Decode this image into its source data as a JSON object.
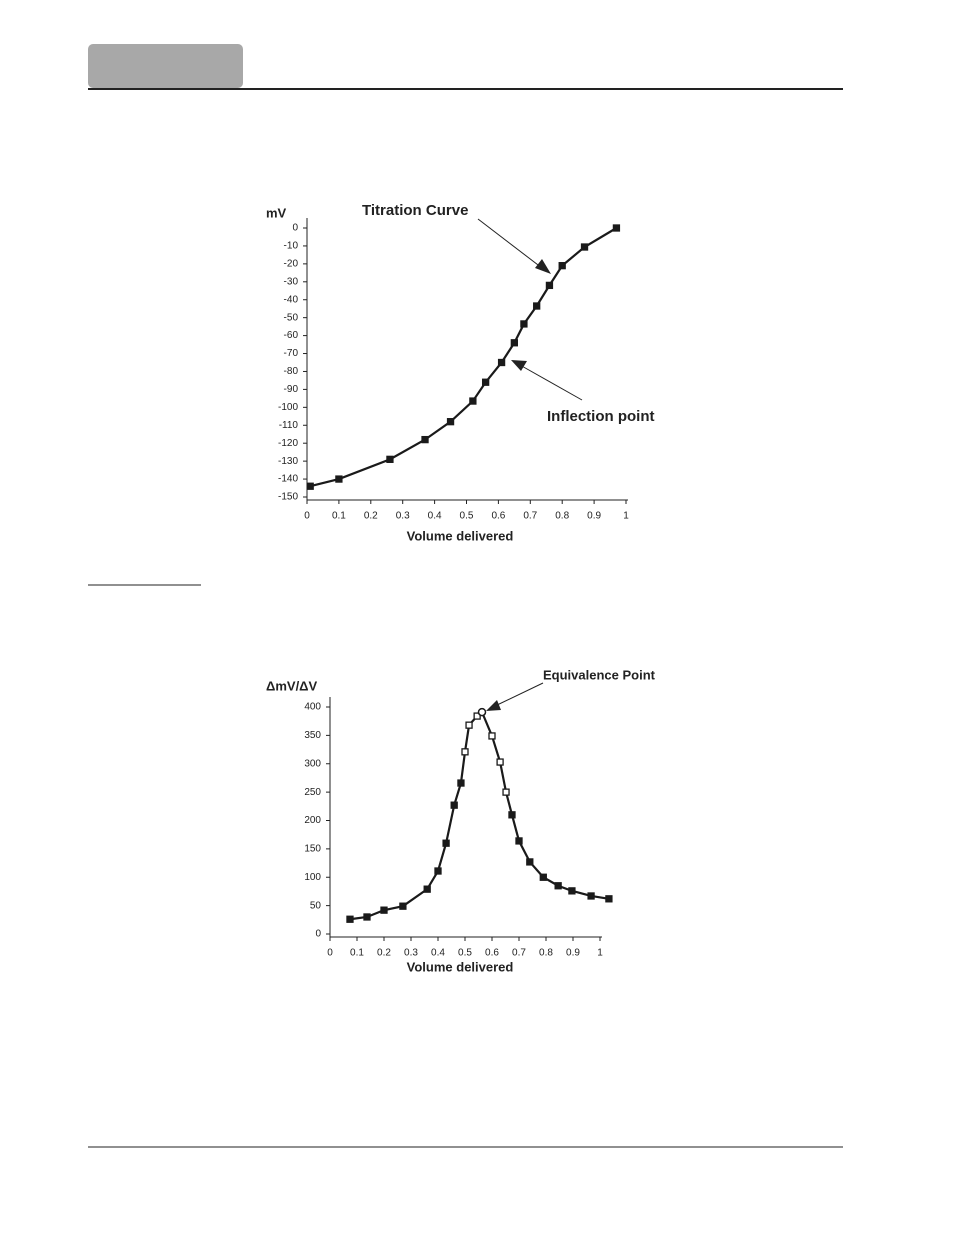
{
  "chart_data": [
    {
      "type": "line",
      "y_label": "mV",
      "x_label": "Volume delivered",
      "annotations": [
        "Titration Curve",
        "Inflection point"
      ],
      "x": [
        0.01,
        0.1,
        0.26,
        0.37,
        0.45,
        0.52,
        0.56,
        0.61,
        0.65,
        0.68,
        0.72,
        0.76,
        0.8,
        0.87,
        0.97
      ],
      "series": [
        {
          "color": "#1a1a1a",
          "values": [
            -144,
            -140,
            -129,
            -118,
            -108,
            -96.5,
            -86,
            -75,
            -64,
            -53.5,
            -43.5,
            -32,
            -21,
            -10.6,
            0
          ]
        }
      ],
      "xlim": [
        0,
        1
      ],
      "xticks": [
        0,
        0.1,
        0.2,
        0.3,
        0.4,
        0.5,
        0.6,
        0.7,
        0.8,
        0.9,
        1
      ],
      "ylim": [
        -150,
        0
      ],
      "yticks": [
        0,
        -10,
        -20,
        -30,
        -40,
        -50,
        -60,
        -70,
        -80,
        -90,
        -100,
        -110,
        -120,
        -130,
        -140,
        -150
      ],
      "grid": false
    },
    {
      "type": "line",
      "y_label": "ΔmV/ΔV",
      "x_label": "Volume delivered",
      "annotations": [
        "Equivalence Point"
      ],
      "x": [
        0.074,
        0.137,
        0.2,
        0.27,
        0.36,
        0.4,
        0.43,
        0.46,
        0.485,
        0.5,
        0.515,
        0.545,
        0.563,
        0.6,
        0.63,
        0.652,
        0.674,
        0.7,
        0.74,
        0.79,
        0.845,
        0.896,
        0.967,
        1.033
      ],
      "series": [
        {
          "color": "#1a1a1a",
          "values": [
            26,
            30,
            42,
            49,
            79,
            111,
            160,
            227,
            266,
            321,
            368,
            384,
            391,
            349,
            303,
            250,
            210,
            164,
            127,
            100,
            85,
            76,
            67,
            62
          ],
          "markers": [
            "square",
            "square",
            "square",
            "square",
            "square",
            "square",
            "square",
            "square",
            "square",
            "open-square",
            "open-square",
            "open-square",
            "open-circle",
            "open-square",
            "open-square",
            "open-square",
            "square",
            "square",
            "square",
            "square",
            "square",
            "square",
            "square",
            "square"
          ]
        }
      ],
      "xlim": [
        0,
        1
      ],
      "xticks": [
        0,
        0.1,
        0.2,
        0.3,
        0.4,
        0.5,
        0.6,
        0.7,
        0.8,
        0.9,
        1
      ],
      "ylim": [
        0,
        400
      ],
      "yticks": [
        0,
        50,
        100,
        150,
        200,
        250,
        300,
        350,
        400
      ],
      "grid": false
    }
  ]
}
